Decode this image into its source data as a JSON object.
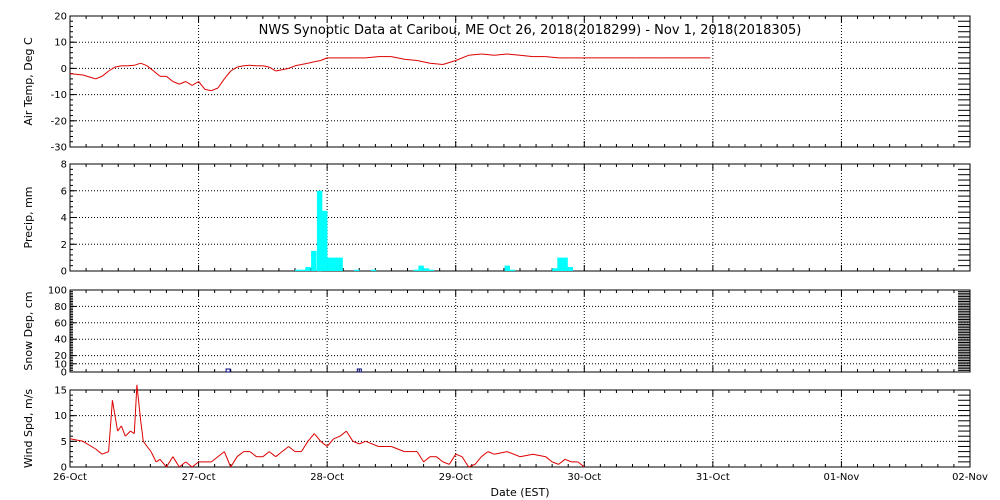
{
  "chart_data": {
    "type": "line",
    "title": "NWS Synoptic Data at Caribou, ME   Oct 26, 2018(2018299) - Nov  1, 2018(2018305)",
    "xlabel": "Date (EST)",
    "x_range": [
      "2018-10-26 00:00",
      "2018-11-02 00:00"
    ],
    "x_ticks": [
      "26-Oct",
      "27-Oct",
      "28-Oct",
      "29-Oct",
      "30-Oct",
      "31-Oct",
      "01-Nov",
      "02-Nov"
    ],
    "grid": true,
    "colors": {
      "temp": "#dd0000",
      "precip": "#00ffff",
      "snow": "#000080",
      "wind": "#dd0000"
    },
    "panels": [
      {
        "type": "line",
        "ylabel": "Air Temp, Deg C",
        "ylim": [
          -30,
          20
        ],
        "yticks": [
          -30,
          -20,
          -10,
          0,
          10,
          20
        ],
        "x_days": [
          0,
          0.1,
          0.2,
          0.25,
          0.3,
          0.35,
          0.4,
          0.45,
          0.5,
          0.55,
          0.6,
          0.65,
          0.7,
          0.75,
          0.8,
          0.85,
          0.9,
          0.95,
          1.0,
          1.05,
          1.1,
          1.15,
          1.2,
          1.25,
          1.3,
          1.35,
          1.4,
          1.45,
          1.5,
          1.55,
          1.6,
          1.65,
          1.7,
          1.75,
          1.8,
          1.85,
          1.9,
          1.95,
          2.0,
          2.1,
          2.2,
          2.3,
          2.4,
          2.5,
          2.6,
          2.7,
          2.8,
          2.9,
          3.0,
          3.1,
          3.2,
          3.3,
          3.4,
          3.5,
          3.6,
          3.7,
          3.8,
          3.9,
          4.0,
          4.2,
          4.4,
          4.6,
          4.8,
          4.98
        ],
        "values": [
          -2,
          -2.5,
          -4,
          -3,
          -1,
          0.5,
          1,
          1,
          1.2,
          2,
          1,
          -1,
          -3,
          -3,
          -5,
          -6,
          -5,
          -6.5,
          -5,
          -8,
          -8.5,
          -7.5,
          -4,
          -1,
          0.5,
          1,
          1.2,
          1,
          1,
          0.5,
          -1,
          -0.5,
          0,
          1,
          1.5,
          2,
          2.5,
          3,
          4,
          4,
          4,
          4,
          4.5,
          4.5,
          3.5,
          3,
          2,
          1.5,
          3,
          5,
          5.5,
          5,
          5.5,
          5,
          4.5,
          4.5,
          4,
          4,
          4,
          4,
          4,
          4,
          4,
          4
        ]
      },
      {
        "type": "bar",
        "ylabel": "Precip, mm",
        "ylim": [
          0,
          8
        ],
        "yticks": [
          0,
          2,
          4,
          6,
          8
        ],
        "bin_width_days": 0.0417,
        "x_days": [
          1.75,
          1.79,
          1.83,
          1.875,
          1.92,
          1.96,
          2.0,
          2.04,
          2.08,
          2.21,
          2.34,
          2.67,
          2.71,
          2.75,
          2.79,
          3.38,
          3.42,
          3.75,
          3.79,
          3.83,
          3.87
        ],
        "values": [
          0.1,
          0.1,
          0.3,
          1.5,
          6.0,
          4.5,
          1.0,
          1.0,
          1.0,
          0.1,
          0.1,
          0.1,
          0.4,
          0.2,
          0.1,
          0.4,
          0.1,
          0.2,
          1.0,
          1.0,
          0.3
        ]
      },
      {
        "type": "scatter",
        "ylabel": "Snow Dep, cm",
        "ylim": [
          0,
          100
        ],
        "yticks": [
          0,
          10,
          20,
          40,
          60,
          80,
          100
        ],
        "x_days": [
          1.23,
          2.25
        ],
        "values": [
          0,
          0
        ]
      },
      {
        "type": "line",
        "ylabel": "Wind Spd, m/s",
        "ylim": [
          0,
          15
        ],
        "yticks": [
          0,
          5,
          10,
          15
        ],
        "x_days": [
          0,
          0.1,
          0.2,
          0.25,
          0.3,
          0.33,
          0.37,
          0.4,
          0.43,
          0.47,
          0.5,
          0.52,
          0.55,
          0.57,
          0.6,
          0.63,
          0.67,
          0.7,
          0.75,
          0.8,
          0.85,
          0.9,
          0.95,
          1.0,
          1.1,
          1.2,
          1.25,
          1.3,
          1.35,
          1.4,
          1.45,
          1.5,
          1.55,
          1.6,
          1.65,
          1.7,
          1.75,
          1.8,
          1.85,
          1.9,
          1.95,
          2.0,
          2.05,
          2.1,
          2.15,
          2.2,
          2.25,
          2.3,
          2.4,
          2.5,
          2.6,
          2.7,
          2.75,
          2.8,
          2.85,
          2.9,
          2.95,
          3.0,
          3.05,
          3.1,
          3.15,
          3.2,
          3.25,
          3.3,
          3.4,
          3.5,
          3.6,
          3.7,
          3.75,
          3.8,
          3.85,
          3.9,
          3.95,
          4.0
        ],
        "values": [
          5.5,
          5,
          3.5,
          2.5,
          3,
          13,
          7,
          8,
          6,
          7,
          6.5,
          16,
          9,
          5,
          4,
          3,
          1,
          1.5,
          0,
          2,
          0,
          1,
          0,
          1,
          1,
          3,
          0,
          2,
          3,
          3,
          2,
          2,
          3,
          2,
          3,
          4,
          3,
          3,
          5,
          6.5,
          5,
          4,
          5.5,
          6,
          7,
          5,
          4.5,
          5,
          4,
          4,
          3,
          3,
          1,
          2,
          2,
          1,
          0.5,
          2.5,
          2,
          0,
          0.5,
          2,
          3,
          2.5,
          3,
          2,
          2.5,
          2,
          1,
          0.5,
          1.5,
          1,
          1,
          0
        ]
      }
    ]
  }
}
